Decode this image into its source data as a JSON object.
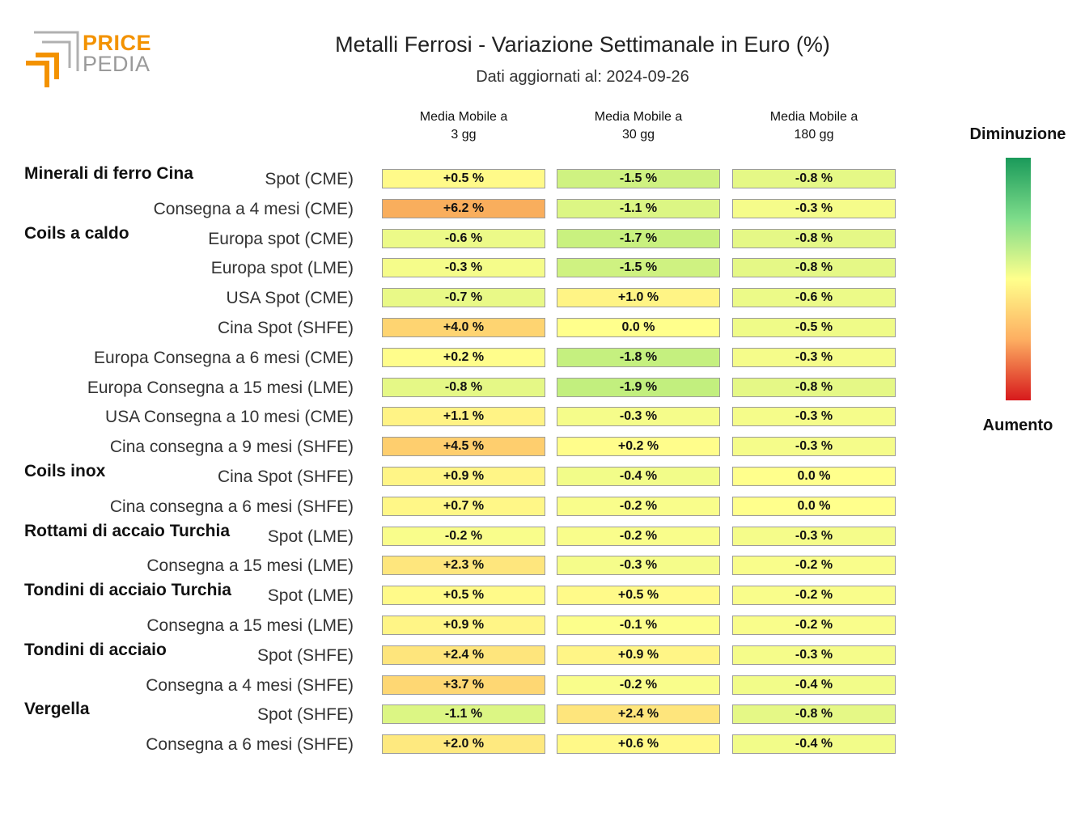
{
  "brand": {
    "line1": "PRICE",
    "line2": "PEDIA",
    "orange": "#f39200",
    "grey": "#9a9a9a"
  },
  "title": "Metalli Ferrosi - Variazione Settimanale in Euro (%)",
  "subtitle": "Dati aggiornati al: 2024-09-26",
  "legend": {
    "top": "Diminuzione",
    "bottom": "Aumento"
  },
  "chart_data": {
    "type": "table",
    "columns": [
      "Media Mobile a\n3 gg",
      "Media Mobile a\n30 gg",
      "Media Mobile a\n180 gg"
    ],
    "rows": [
      {
        "group": "Minerali di ferro Cina",
        "label": "Spot (CME)",
        "values": [
          0.5,
          -1.5,
          -0.8
        ],
        "text": [
          "+0.5 %",
          "-1.5 %",
          "-0.8 %"
        ]
      },
      {
        "group": "",
        "label": "Consegna a 4 mesi (CME)",
        "values": [
          6.2,
          -1.1,
          -0.3
        ],
        "text": [
          "+6.2 %",
          "-1.1 %",
          "-0.3 %"
        ]
      },
      {
        "group": "Coils a caldo",
        "label": "Europa spot (CME)",
        "values": [
          -0.6,
          -1.7,
          -0.8
        ],
        "text": [
          "-0.6 %",
          "-1.7 %",
          "-0.8 %"
        ]
      },
      {
        "group": "",
        "label": "Europa spot (LME)",
        "values": [
          -0.3,
          -1.5,
          -0.8
        ],
        "text": [
          "-0.3 %",
          "-1.5 %",
          "-0.8 %"
        ]
      },
      {
        "group": "",
        "label": "USA Spot (CME)",
        "values": [
          -0.7,
          1.0,
          -0.6
        ],
        "text": [
          "-0.7 %",
          "+1.0 %",
          "-0.6 %"
        ]
      },
      {
        "group": "",
        "label": "Cina Spot (SHFE)",
        "values": [
          4.0,
          0.0,
          -0.5
        ],
        "text": [
          "+4.0 %",
          "0.0 %",
          "-0.5 %"
        ]
      },
      {
        "group": "",
        "label": "Europa Consegna a 6 mesi (CME)",
        "values": [
          0.2,
          -1.8,
          -0.3
        ],
        "text": [
          "+0.2 %",
          "-1.8 %",
          "-0.3 %"
        ]
      },
      {
        "group": "",
        "label": "Europa Consegna a 15 mesi (LME)",
        "values": [
          -0.8,
          -1.9,
          -0.8
        ],
        "text": [
          "-0.8 %",
          "-1.9 %",
          "-0.8 %"
        ]
      },
      {
        "group": "",
        "label": "USA Consegna a 10 mesi (CME)",
        "values": [
          1.1,
          -0.3,
          -0.3
        ],
        "text": [
          "+1.1 %",
          "-0.3 %",
          "-0.3 %"
        ]
      },
      {
        "group": "",
        "label": "Cina consegna a 9 mesi (SHFE)",
        "values": [
          4.5,
          0.2,
          -0.3
        ],
        "text": [
          "+4.5 %",
          "+0.2 %",
          "-0.3 %"
        ]
      },
      {
        "group": "Coils inox",
        "label": "Cina Spot (SHFE)",
        "values": [
          0.9,
          -0.4,
          0.0
        ],
        "text": [
          "+0.9 %",
          "-0.4 %",
          "0.0 %"
        ]
      },
      {
        "group": "",
        "label": "Cina consegna a 6 mesi (SHFE)",
        "values": [
          0.7,
          -0.2,
          0.0
        ],
        "text": [
          "+0.7 %",
          "-0.2 %",
          "0.0 %"
        ]
      },
      {
        "group": "Rottami di accaio Turchia",
        "label": "Spot (LME)",
        "values": [
          -0.2,
          -0.2,
          -0.3
        ],
        "text": [
          "-0.2 %",
          "-0.2 %",
          "-0.3 %"
        ]
      },
      {
        "group": "",
        "label": "Consegna a 15 mesi (LME)",
        "values": [
          2.3,
          -0.3,
          -0.2
        ],
        "text": [
          "+2.3 %",
          "-0.3 %",
          "-0.2 %"
        ]
      },
      {
        "group": "Tondini di acciaio Turchia",
        "label": "Spot (LME)",
        "values": [
          0.5,
          0.5,
          -0.2
        ],
        "text": [
          "+0.5 %",
          "+0.5 %",
          "-0.2 %"
        ]
      },
      {
        "group": "",
        "label": "Consegna a 15 mesi (LME)",
        "values": [
          0.9,
          -0.1,
          -0.2
        ],
        "text": [
          "+0.9 %",
          "-0.1 %",
          "-0.2 %"
        ]
      },
      {
        "group": "Tondini di acciaio",
        "label": "Spot (SHFE)",
        "values": [
          2.4,
          0.9,
          -0.3
        ],
        "text": [
          "+2.4 %",
          "+0.9 %",
          "-0.3 %"
        ]
      },
      {
        "group": "",
        "label": "Consegna a 4 mesi (SHFE)",
        "values": [
          3.7,
          -0.2,
          -0.4
        ],
        "text": [
          "+3.7 %",
          "-0.2 %",
          "-0.4 %"
        ]
      },
      {
        "group": "Vergella",
        "label": "Spot (SHFE)",
        "values": [
          -1.1,
          2.4,
          -0.8
        ],
        "text": [
          "-1.1 %",
          "+2.4 %",
          "-0.8 %"
        ]
      },
      {
        "group": "",
        "label": "Consegna a 6 mesi (SHFE)",
        "values": [
          2.0,
          0.6,
          -0.4
        ],
        "text": [
          "+2.0 %",
          "+0.6 %",
          "-0.4 %"
        ]
      }
    ],
    "color_scale": {
      "decrease": "#1a9a5a",
      "neutral": "#ffff8c",
      "increase": "#d7191c"
    }
  }
}
